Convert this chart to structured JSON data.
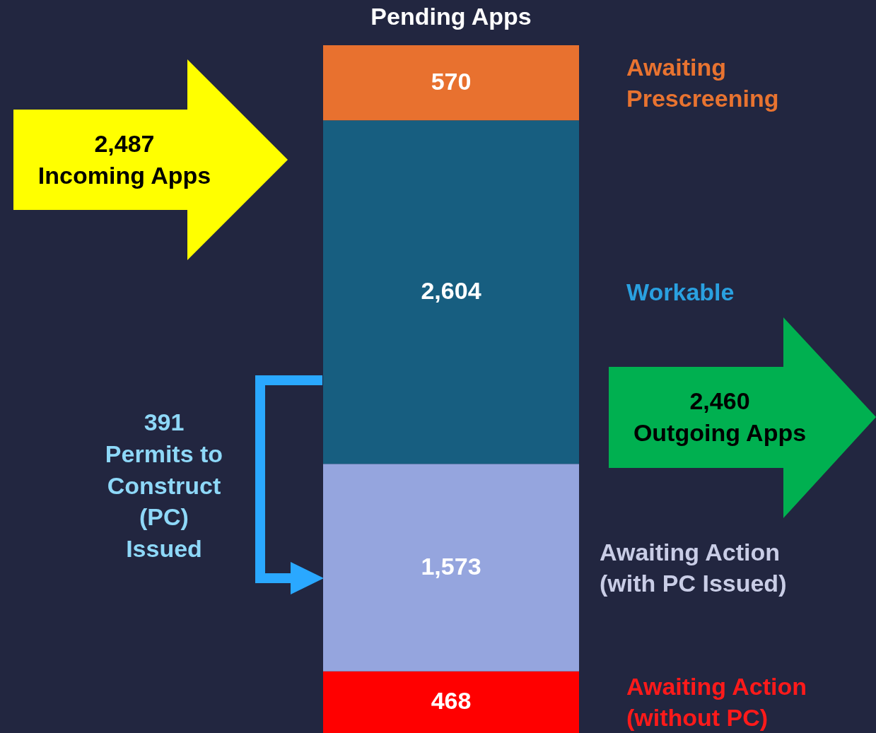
{
  "chart_data": {
    "type": "bar",
    "title": "Pending Apps",
    "stacked": true,
    "categories": [
      null
    ],
    "legend": false,
    "series": [
      {
        "name": "Awaiting Action (without PC)",
        "color": "#ff0000",
        "values": [
          468
        ],
        "value_labels": [
          "468"
        ]
      },
      {
        "name": "Awaiting Action (with PC Issued)",
        "color": "#95a5de",
        "values": [
          1573
        ],
        "value_labels": [
          "1,573"
        ]
      },
      {
        "name": "Workable",
        "color": "#175e80",
        "values": [
          2604
        ],
        "value_labels": [
          "2,604"
        ]
      },
      {
        "name": "Awaiting Prescreening",
        "color": "#e8712f",
        "values": [
          570
        ],
        "value_labels": [
          "570"
        ]
      }
    ],
    "annotations": [
      "2,487\nIncoming Apps",
      "2,460\nOutgoing Apps",
      "391\nPermits to\nConstruct\n(PC)\nIssued"
    ]
  }
}
